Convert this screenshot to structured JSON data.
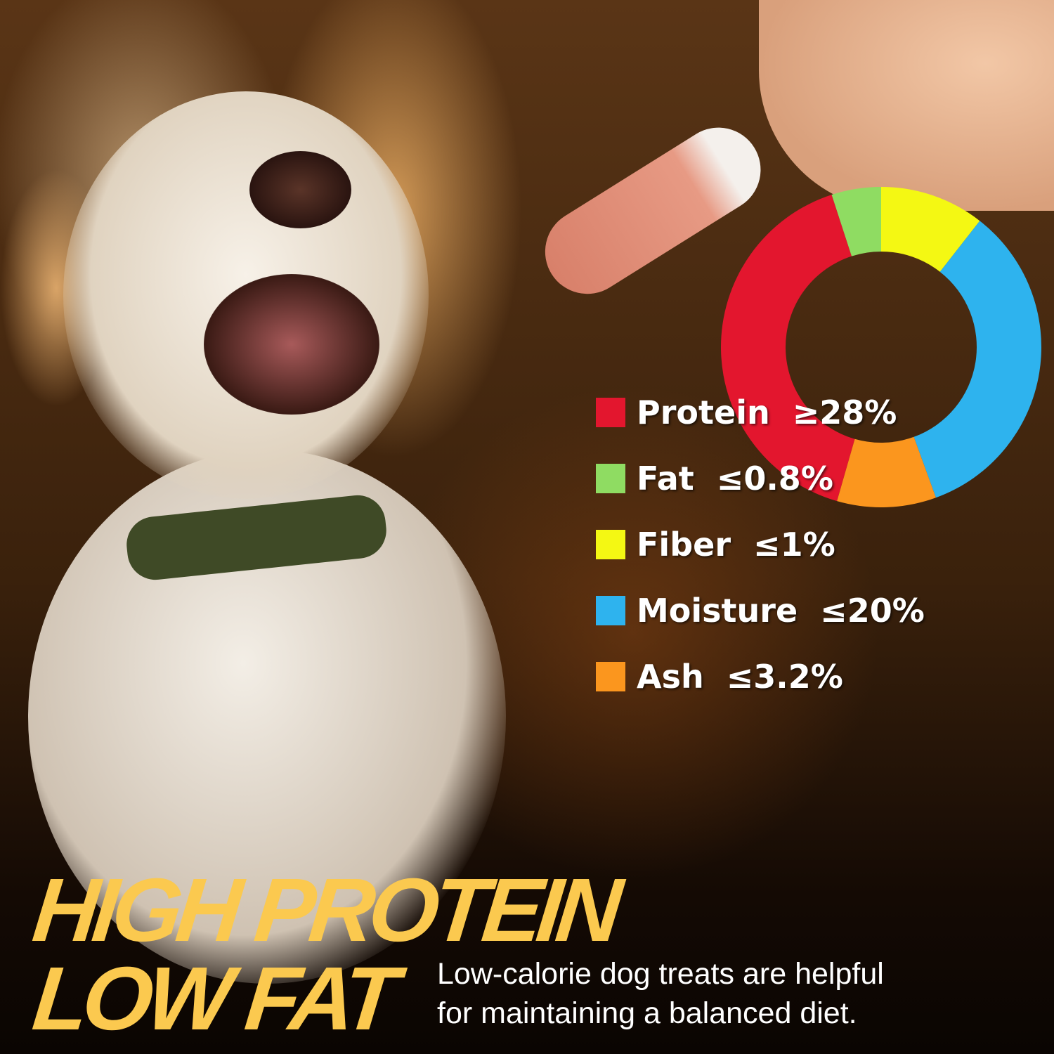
{
  "headline": {
    "line1": "HIGH PROTEIN",
    "line2": "LOW FAT"
  },
  "subtitle": {
    "line1": "Low-calorie dog treats are helpful",
    "line2": "for maintaining a balanced diet."
  },
  "colors": {
    "protein": "#e3162e",
    "fat": "#8fdc62",
    "fiber": "#f4f813",
    "moisture": "#2eb3ee",
    "ash": "#fb961e",
    "headline": "#fbc94f"
  },
  "chart_data": {
    "type": "pie",
    "style": "donut",
    "legend_placement": "left",
    "categories": [
      "Protein",
      "Fat",
      "Fiber",
      "Moisture",
      "Ash"
    ],
    "labels": [
      "Protein  ≥28%",
      "Fat  ≤0.8%",
      "Fiber  ≤1%",
      "Moisture  ≤20%",
      "Ash  ≤3.2%"
    ],
    "values": [
      28,
      0.8,
      1,
      20,
      3.2
    ]
  }
}
